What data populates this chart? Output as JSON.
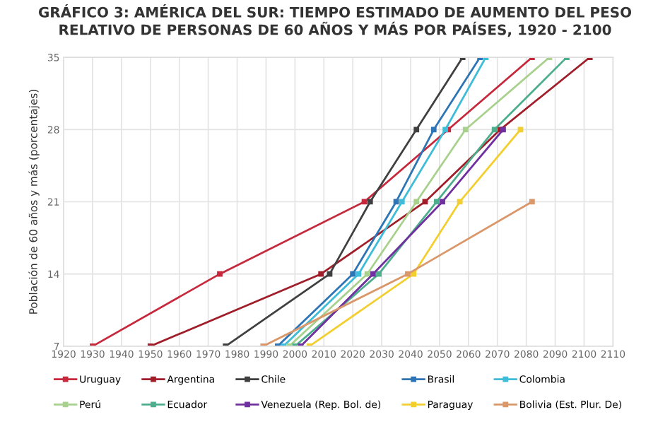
{
  "chart_data": {
    "type": "line",
    "title": "GRÁFICO 3: AMÉRICA DEL SUR: TIEMPO ESTIMADO DE AUMENTO DEL PESO RELATIVO DE PERSONAS DE 60 AÑOS Y MÁS POR PAÍSES, 1920 - 2100",
    "ylabel": "Población de 60 años y más (porcentajes)",
    "xlim": [
      1920,
      2110
    ],
    "xticks": [
      1920,
      1930,
      1940,
      1950,
      1960,
      1970,
      1980,
      1990,
      2000,
      2010,
      2020,
      2030,
      2040,
      2050,
      2060,
      2070,
      2080,
      2090,
      2100,
      2110
    ],
    "ylim": [
      7,
      35
    ],
    "yticks": [
      7,
      14,
      21,
      28,
      35
    ],
    "grid": true,
    "legend": "bottom",
    "marker": "square",
    "line_style": "solid",
    "series": [
      {
        "name": "Uruguay",
        "color": "#c8283c",
        "x": [
          1930,
          1974,
          2024,
          2053,
          2082
        ],
        "values": [
          7,
          14,
          21,
          28,
          35
        ]
      },
      {
        "name": "Argentina",
        "color": "#a01e2a",
        "x": [
          1950,
          2009,
          2045,
          2071,
          2102
        ],
        "values": [
          7,
          14,
          21,
          28,
          35
        ]
      },
      {
        "name": "Chile",
        "color": "#404040",
        "x": [
          1976,
          2012,
          2026,
          2042,
          2058
        ],
        "values": [
          7,
          14,
          21,
          28,
          35
        ]
      },
      {
        "name": "Brasil",
        "color": "#2e75b6",
        "x": [
          1994,
          2020,
          2035,
          2048,
          2064
        ],
        "values": [
          7,
          14,
          21,
          28,
          35
        ]
      },
      {
        "name": "Colombia",
        "color": "#3fbcd8",
        "x": [
          1996,
          2022,
          2037,
          2052,
          2066
        ],
        "values": [
          7,
          14,
          21,
          28,
          35
        ]
      },
      {
        "name": "Perú",
        "color": "#a9d18e",
        "x": [
          1998,
          2025,
          2042,
          2059,
          2088
        ],
        "values": [
          7,
          14,
          21,
          28,
          35
        ]
      },
      {
        "name": "Ecuador",
        "color": "#4cae8c",
        "x": [
          2000,
          2029,
          2049,
          2069,
          2094
        ],
        "values": [
          7,
          14,
          21,
          28,
          35
        ]
      },
      {
        "name": "Venezuela (Rep. Bol. de)",
        "color": "#7030a0",
        "x": [
          2002,
          2027,
          2051,
          2072
        ],
        "values": [
          7,
          14,
          21,
          28
        ]
      },
      {
        "name": "Paraguay",
        "color": "#f2cf2e",
        "x": [
          2005,
          2041,
          2057,
          2078
        ],
        "values": [
          7,
          14,
          21,
          28
        ]
      },
      {
        "name": "Bolivia (Est. Plur. De)",
        "color": "#d9976a",
        "x": [
          1989,
          2039,
          2082
        ],
        "values": [
          7,
          14,
          21
        ]
      }
    ]
  }
}
